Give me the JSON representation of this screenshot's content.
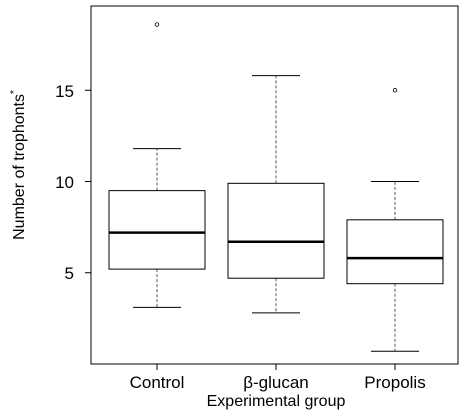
{
  "chart_data": {
    "type": "boxplot",
    "xlabel": "Experimental group",
    "ylabel": "Number of trophonts",
    "ylabel_superscript": "*",
    "yticks": [
      5,
      10,
      15
    ],
    "ylim": [
      0,
      19.5
    ],
    "grid": false,
    "categories": [
      "Control",
      "β-glucan",
      "Propolis"
    ],
    "boxes": [
      {
        "name": "Control",
        "whisker_low": 3.1,
        "q1": 5.2,
        "median": 7.2,
        "q3": 9.5,
        "whisker_high": 11.8,
        "outliers": [
          18.6
        ]
      },
      {
        "name": "β-glucan",
        "whisker_low": 2.8,
        "q1": 4.7,
        "median": 6.7,
        "q3": 9.9,
        "whisker_high": 15.8,
        "outliers": []
      },
      {
        "name": "Propolis",
        "whisker_low": 0.7,
        "q1": 4.4,
        "median": 5.8,
        "q3": 7.9,
        "whisker_high": 10.0,
        "outliers": [
          15.0
        ]
      }
    ],
    "colors": {
      "box_fill": "#ffffff",
      "stroke": "#000000",
      "whisker": "#555555"
    }
  }
}
